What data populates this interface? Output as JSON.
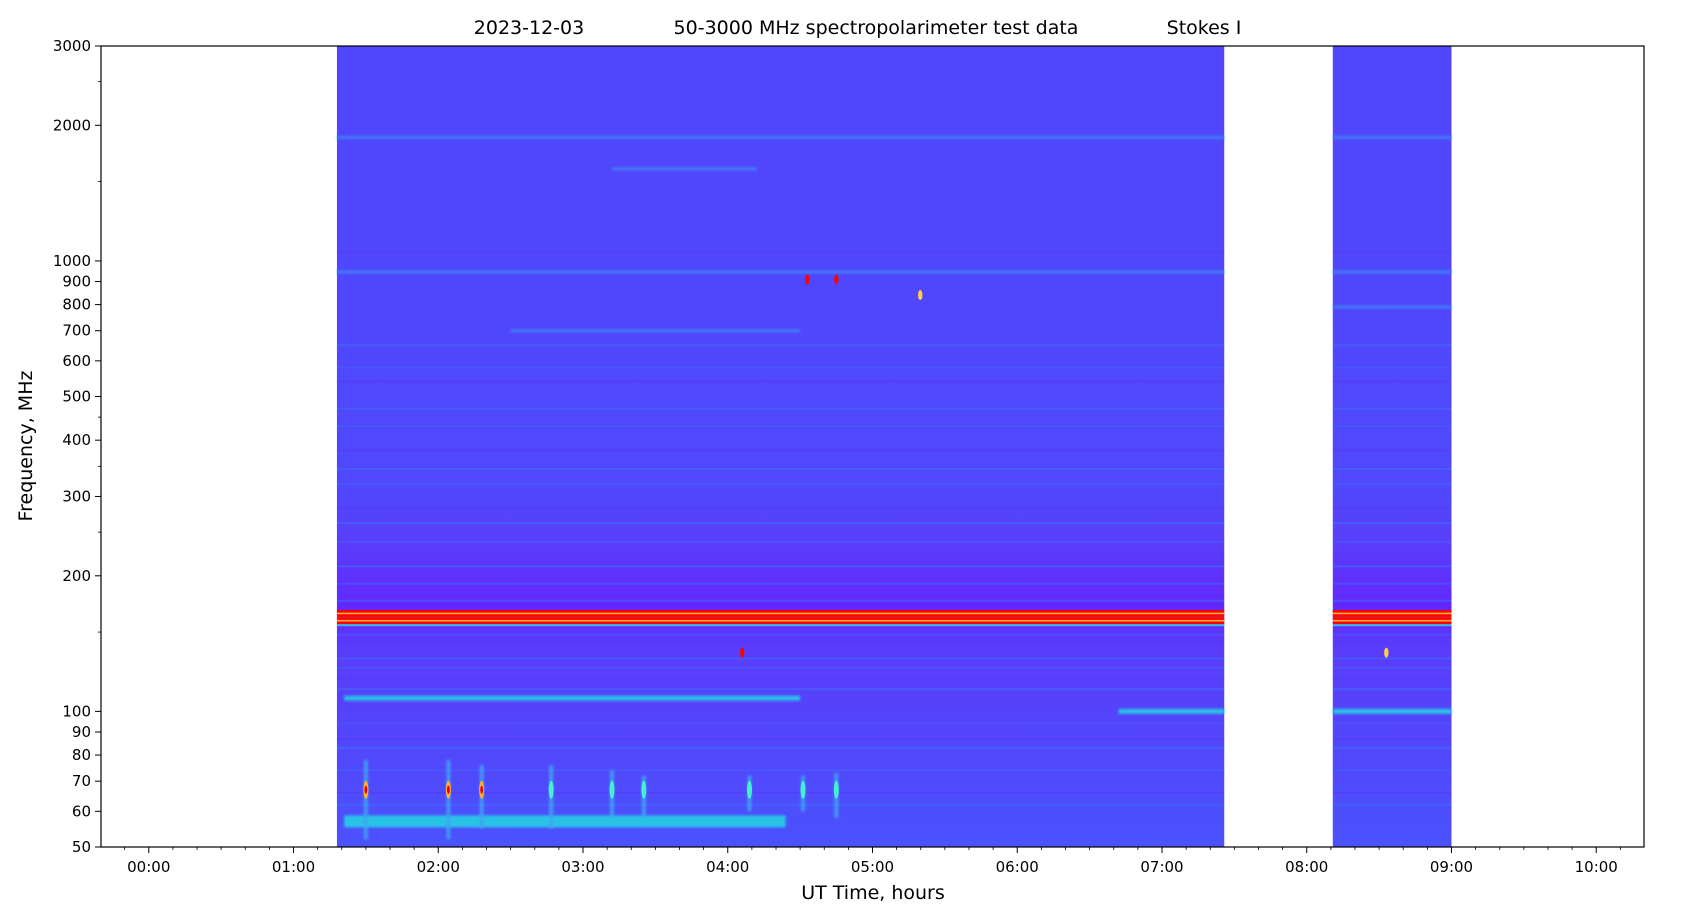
{
  "chart_data": {
    "type": "heatmap",
    "title": {
      "date": "2023-12-03",
      "instrument": "50-3000 MHz spectropolarimeter test data",
      "parameter": "Stokes I"
    },
    "xlabel": "UT Time, hours",
    "ylabel": "Frequency, MHz",
    "xlim_hours": [
      -0.33,
      10.33
    ],
    "ylim_mhz": [
      50,
      3000
    ],
    "y_scale": "log",
    "x_ticks": [
      {
        "value": 0,
        "label": "00:00"
      },
      {
        "value": 1,
        "label": "01:00"
      },
      {
        "value": 2,
        "label": "02:00"
      },
      {
        "value": 3,
        "label": "03:00"
      },
      {
        "value": 4,
        "label": "04:00"
      },
      {
        "value": 5,
        "label": "05:00"
      },
      {
        "value": 6,
        "label": "06:00"
      },
      {
        "value": 7,
        "label": "07:00"
      },
      {
        "value": 8,
        "label": "08:00"
      },
      {
        "value": 9,
        "label": "09:00"
      },
      {
        "value": 10,
        "label": "10:00"
      }
    ],
    "y_ticks": [
      {
        "value": 50,
        "label": "50"
      },
      {
        "value": 60,
        "label": "60"
      },
      {
        "value": 70,
        "label": "70"
      },
      {
        "value": 80,
        "label": "80"
      },
      {
        "value": 90,
        "label": "90"
      },
      {
        "value": 100,
        "label": "100"
      },
      {
        "value": 200,
        "label": "200"
      },
      {
        "value": 300,
        "label": "300"
      },
      {
        "value": 400,
        "label": "400"
      },
      {
        "value": 500,
        "label": "500"
      },
      {
        "value": 600,
        "label": "600"
      },
      {
        "value": 700,
        "label": "700"
      },
      {
        "value": 800,
        "label": "800"
      },
      {
        "value": 900,
        "label": "900"
      },
      {
        "value": 1000,
        "label": "1000"
      },
      {
        "value": 2000,
        "label": "2000"
      },
      {
        "value": 3000,
        "label": "3000"
      }
    ],
    "y_minor_ticks": [
      150,
      250,
      350,
      450,
      1500,
      2500
    ],
    "grid": false,
    "colormap": "rainbow",
    "colors": {
      "background": "#5046fc",
      "low": "#6a23fb",
      "mid": "#29c8e6",
      "high": "#ff0000",
      "peak": "#ffff40"
    },
    "observation_segments": [
      {
        "start_hour": 1.3,
        "end_hour": 7.43
      },
      {
        "start_hour": 8.18,
        "end_hour": 9.0
      }
    ],
    "features": [
      {
        "kind": "band",
        "freq_mhz": 165,
        "intensity": "saturated"
      },
      {
        "kind": "band",
        "freq_mhz": 159,
        "intensity": "saturated"
      },
      {
        "kind": "band",
        "freq_mhz": 107,
        "intensity": "moderate",
        "start_hour": 1.35,
        "end_hour": 4.5
      },
      {
        "kind": "band",
        "freq_mhz": 100,
        "intensity": "moderate",
        "start_hour": 6.7,
        "end_hour": 7.43
      },
      {
        "kind": "band",
        "freq_mhz": 100,
        "intensity": "moderate",
        "start_hour": 8.18,
        "end_hour": 9.0
      },
      {
        "kind": "band",
        "freq_mhz": 57,
        "intensity": "moderate",
        "start_hour": 1.35,
        "end_hour": 4.4
      },
      {
        "kind": "band",
        "freq_mhz": 945,
        "intensity": "low"
      },
      {
        "kind": "band",
        "freq_mhz": 1880,
        "intensity": "low"
      },
      {
        "kind": "band",
        "freq_mhz": 1600,
        "intensity": "low",
        "start_hour": 3.2,
        "end_hour": 4.2
      },
      {
        "kind": "band",
        "freq_mhz": 700,
        "intensity": "low",
        "start_hour": 2.5,
        "end_hour": 4.5
      },
      {
        "kind": "band",
        "freq_mhz": 790,
        "intensity": "low",
        "start_hour": 8.18,
        "end_hour": 9.0
      },
      {
        "kind": "burst",
        "hour": 1.5,
        "freq_range_mhz": [
          52,
          78
        ],
        "intensity": "high"
      },
      {
        "kind": "burst",
        "hour": 2.07,
        "freq_range_mhz": [
          52,
          78
        ],
        "intensity": "high"
      },
      {
        "kind": "burst",
        "hour": 2.3,
        "freq_range_mhz": [
          55,
          76
        ],
        "intensity": "high"
      },
      {
        "kind": "burst",
        "hour": 2.78,
        "freq_range_mhz": [
          55,
          76
        ],
        "intensity": "moderate"
      },
      {
        "kind": "burst",
        "hour": 3.2,
        "freq_range_mhz": [
          58,
          74
        ],
        "intensity": "moderate"
      },
      {
        "kind": "burst",
        "hour": 3.42,
        "freq_range_mhz": [
          58,
          72
        ],
        "intensity": "moderate"
      },
      {
        "kind": "burst",
        "hour": 4.15,
        "freq_range_mhz": [
          60,
          72
        ],
        "intensity": "moderate"
      },
      {
        "kind": "burst",
        "hour": 4.52,
        "freq_range_mhz": [
          60,
          72
        ],
        "intensity": "moderate"
      },
      {
        "kind": "burst",
        "hour": 4.75,
        "freq_range_mhz": [
          58,
          73
        ],
        "intensity": "moderate"
      },
      {
        "kind": "spot",
        "hour": 4.1,
        "freq_mhz": 135,
        "intensity": "saturated"
      },
      {
        "kind": "spot",
        "hour": 4.55,
        "freq_mhz": 910,
        "intensity": "saturated"
      },
      {
        "kind": "spot",
        "hour": 4.75,
        "freq_mhz": 910,
        "intensity": "saturated"
      },
      {
        "kind": "spot",
        "hour": 5.33,
        "freq_mhz": 840,
        "intensity": "high"
      },
      {
        "kind": "spot",
        "hour": 8.55,
        "freq_mhz": 135,
        "intensity": "high"
      }
    ]
  }
}
